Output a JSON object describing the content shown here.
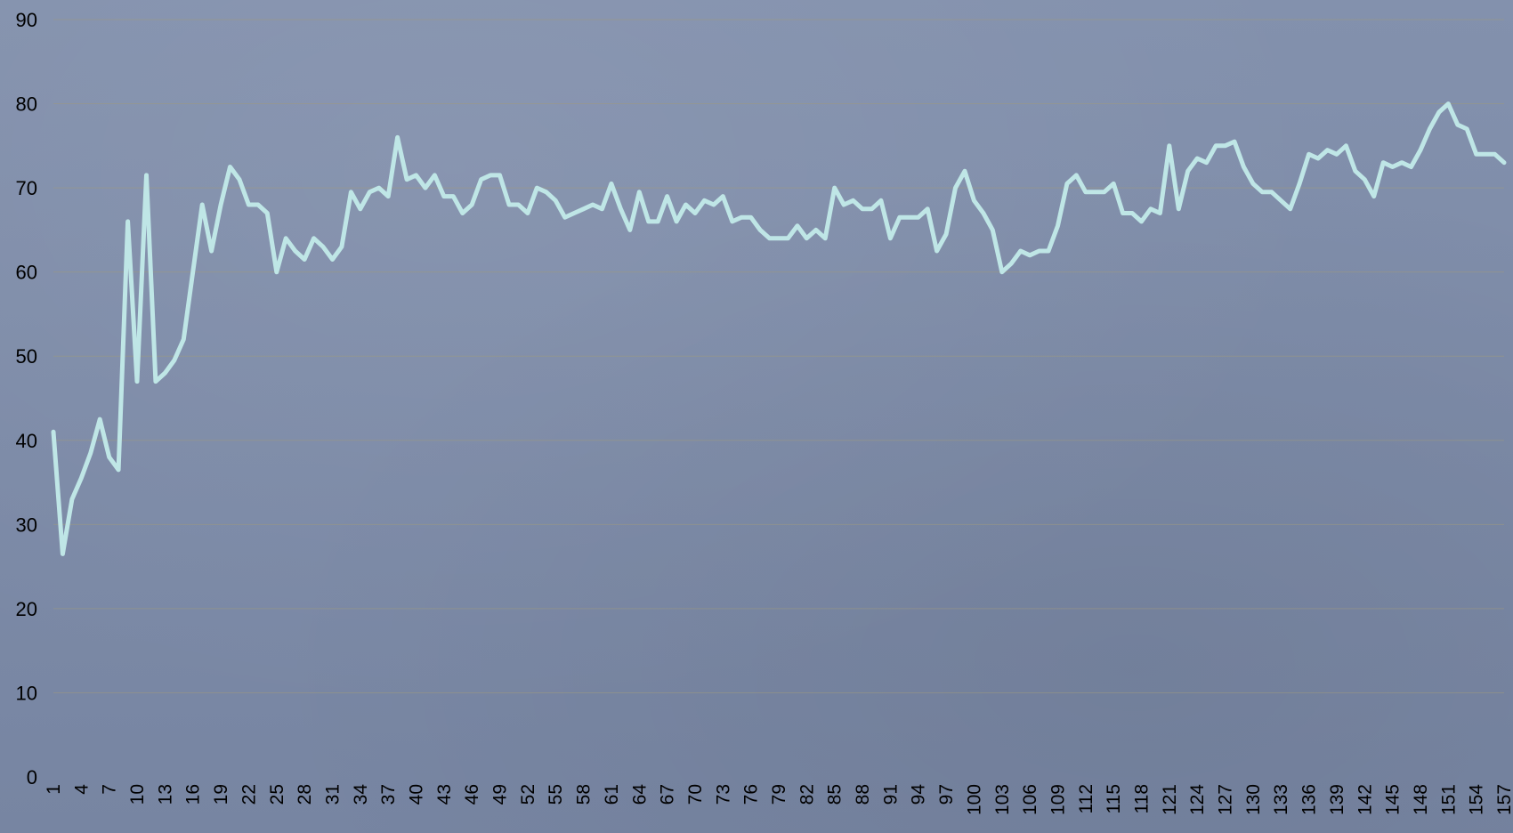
{
  "chart_data": {
    "type": "line",
    "title": "",
    "xlabel": "",
    "ylabel": "",
    "ylim": [
      0,
      90
    ],
    "y_ticks": [
      "0",
      "10",
      "20",
      "30",
      "40",
      "50",
      "60",
      "70",
      "80",
      "90"
    ],
    "x_range": [
      1,
      157
    ],
    "x_tick_step": 3,
    "grid": true,
    "legend": "none",
    "colors": {
      "background": "#7d8aa6",
      "line": "#bfe6e6",
      "grid": "#9e9a80"
    },
    "series": [
      {
        "values": [
          41,
          26.5,
          33,
          35.5,
          38.5,
          42.5,
          38,
          36.5,
          66,
          47,
          71.5,
          47,
          48,
          49.5,
          52,
          60,
          68,
          62.5,
          68,
          72.5,
          71,
          68,
          68,
          67,
          60,
          64,
          62.5,
          61.5,
          64,
          63,
          61.5,
          63,
          69.5,
          67.5,
          69.5,
          70,
          69,
          76,
          71,
          71.5,
          70,
          71.5,
          69,
          69,
          67,
          68,
          71,
          71.5,
          71.5,
          68,
          68,
          67,
          70,
          69.5,
          68.5,
          66.5,
          67,
          67.5,
          68,
          67.5,
          70.5,
          67.5,
          65,
          69.5,
          66,
          66,
          69,
          66,
          68,
          67,
          68.5,
          68,
          69,
          66,
          66.5,
          66.5,
          65,
          64,
          64,
          64,
          65.5,
          64,
          65,
          64,
          70,
          68,
          68.5,
          67.5,
          67.5,
          68.5,
          64,
          66.5,
          66.5,
          66.5,
          67.5,
          62.5,
          64.5,
          70,
          72,
          68.5,
          67,
          65,
          60,
          61,
          62.5,
          62,
          62.5,
          62.5,
          65.5,
          70.5,
          71.5,
          69.5,
          69.5,
          69.5,
          70.5,
          67,
          67,
          66,
          67.5,
          67,
          75,
          67.5,
          72,
          73.5,
          73,
          75,
          75,
          75.5,
          72.5,
          70.5,
          69.5,
          69.5,
          68.5,
          67.5,
          70.5,
          74,
          73.5,
          74.5,
          74,
          75,
          72,
          71,
          69,
          73,
          72.5,
          73,
          72.5,
          74.5,
          77,
          79,
          80,
          77.5,
          77,
          74,
          74,
          74,
          73
        ]
      }
    ]
  }
}
